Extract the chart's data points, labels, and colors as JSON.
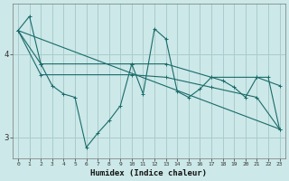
{
  "xlabel": "Humidex (Indice chaleur)",
  "background_color": "#cce8e8",
  "grid_color": "#aacccc",
  "line_color": "#1a6b6b",
  "xlim": [
    -0.5,
    23.5
  ],
  "ylim": [
    2.75,
    4.6
  ],
  "yticks": [
    3,
    4
  ],
  "xticks": [
    0,
    1,
    2,
    3,
    4,
    5,
    6,
    7,
    8,
    9,
    10,
    11,
    12,
    13,
    14,
    15,
    16,
    17,
    18,
    19,
    20,
    21,
    22,
    23
  ],
  "line1_x": [
    0,
    1,
    2,
    3,
    4,
    5,
    6,
    7,
    8,
    9,
    10,
    11,
    12,
    13,
    14,
    15,
    16,
    17,
    18,
    19,
    20,
    21,
    22,
    23
  ],
  "line1_y": [
    4.28,
    4.45,
    3.88,
    3.62,
    3.52,
    3.48,
    2.88,
    3.05,
    3.2,
    3.38,
    3.88,
    3.52,
    4.3,
    4.18,
    3.55,
    3.48,
    3.58,
    3.72,
    3.68,
    3.6,
    3.48,
    3.72,
    3.72,
    3.1
  ],
  "line2_x": [
    0,
    2,
    10,
    13,
    17,
    21,
    23
  ],
  "line2_y": [
    4.28,
    3.88,
    3.88,
    3.88,
    3.72,
    3.72,
    3.62
  ],
  "line3_x": [
    0,
    2,
    10,
    13,
    17,
    21,
    23
  ],
  "line3_y": [
    4.28,
    3.75,
    3.75,
    3.72,
    3.6,
    3.48,
    3.1
  ],
  "line4_x": [
    0,
    23
  ],
  "line4_y": [
    4.28,
    3.1
  ]
}
